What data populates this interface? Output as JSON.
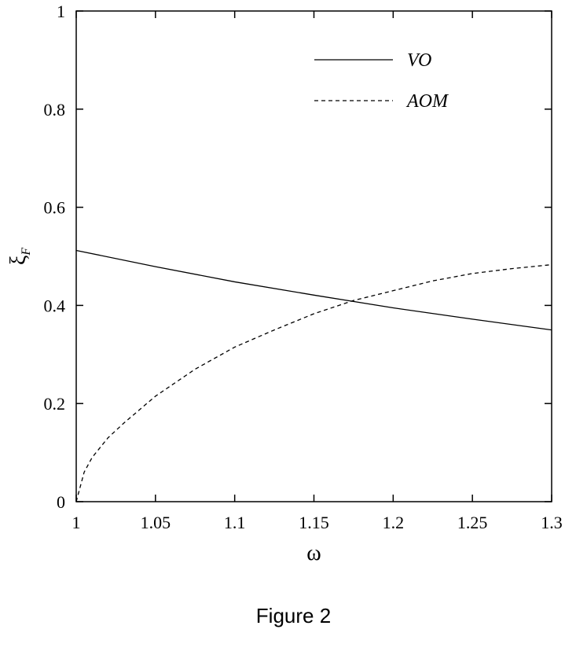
{
  "chart_data": {
    "type": "line",
    "xlabel": "ω",
    "ylabel": "ξ",
    "ylabel_subscript": "F",
    "xlim": [
      1,
      1.3
    ],
    "ylim": [
      0,
      1
    ],
    "xticks": [
      "1",
      "1.05",
      "1.1",
      "1.15",
      "1.2",
      "1.25",
      "1.3"
    ],
    "yticks": [
      "0",
      "0.2",
      "0.4",
      "0.6",
      "0.8",
      "1"
    ],
    "grid": false,
    "legend_position": "top-right",
    "series": [
      {
        "name": "VO",
        "style": "solid",
        "x": [
          1.0,
          1.05,
          1.1,
          1.15,
          1.2,
          1.25,
          1.3
        ],
        "y": [
          0.512,
          0.479,
          0.448,
          0.421,
          0.395,
          0.372,
          0.35
        ]
      },
      {
        "name": "AOM",
        "style": "dashed",
        "x": [
          1.0,
          1.005,
          1.01,
          1.02,
          1.03,
          1.05,
          1.075,
          1.1,
          1.125,
          1.15,
          1.175,
          1.2,
          1.225,
          1.25,
          1.275,
          1.3
        ],
        "y": [
          0.0,
          0.06,
          0.09,
          0.13,
          0.16,
          0.215,
          0.27,
          0.315,
          0.35,
          0.383,
          0.41,
          0.43,
          0.45,
          0.465,
          0.475,
          0.483
        ]
      }
    ]
  },
  "caption": "Figure 2"
}
